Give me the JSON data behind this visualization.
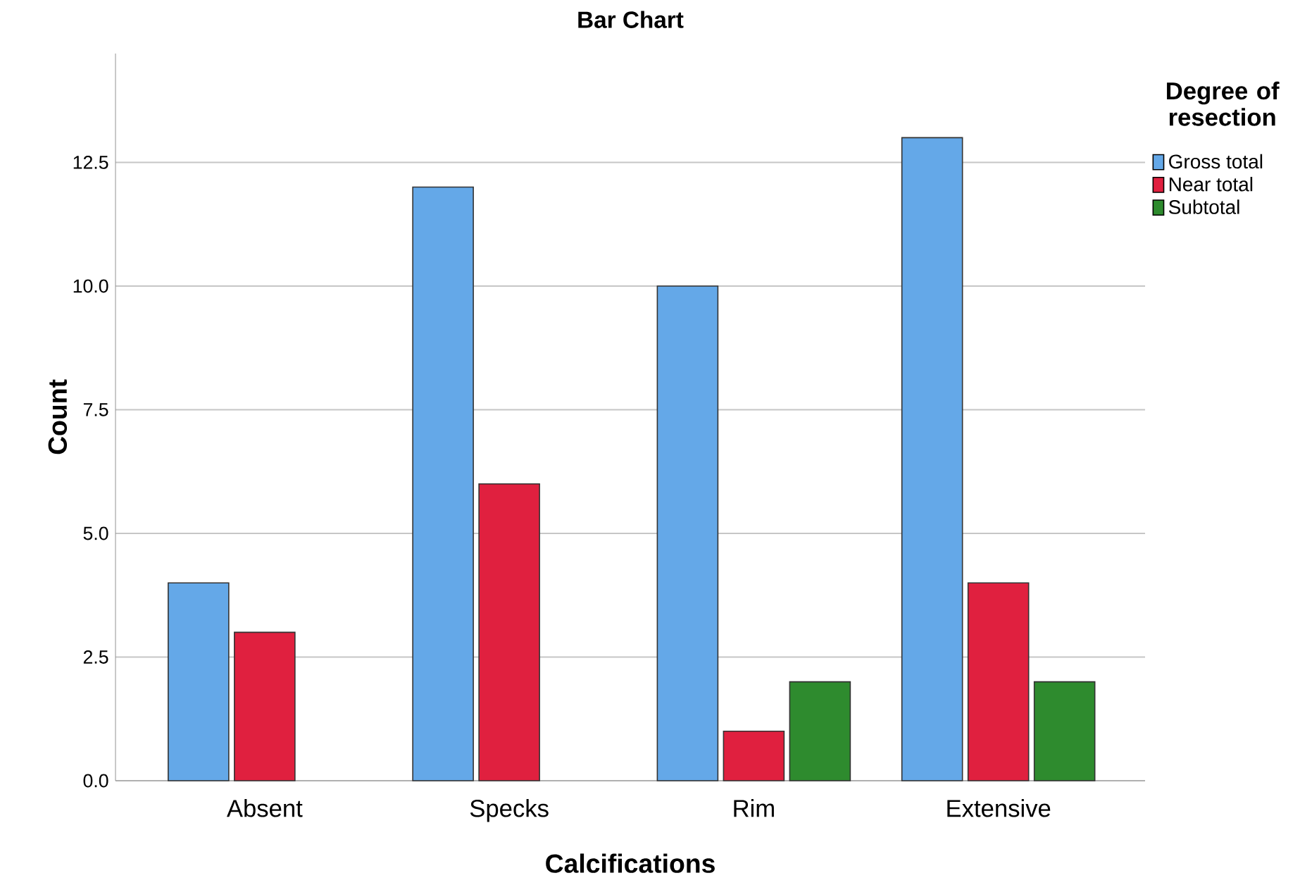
{
  "chart_data": {
    "type": "bar",
    "title": "Bar Chart",
    "xlabel": "Calcifications",
    "ylabel": "Count",
    "legend_title": "Degree of resection",
    "categories": [
      "Absent",
      "Specks",
      "Rim",
      "Extensive"
    ],
    "series": [
      {
        "name": "Gross total",
        "color": "#64a8e8",
        "values": [
          4,
          12,
          10,
          13
        ]
      },
      {
        "name": "Near total",
        "color": "#e0203f",
        "values": [
          3,
          6,
          1,
          4
        ]
      },
      {
        "name": "Subtotal",
        "color": "#2e8b2e",
        "values": [
          null,
          null,
          2,
          2
        ]
      }
    ],
    "ylim": [
      0,
      14.7
    ],
    "yticks": [
      {
        "value": 0,
        "label": "0.0"
      },
      {
        "value": 2.5,
        "label": "2.5"
      },
      {
        "value": 5,
        "label": "5.0"
      },
      {
        "value": 7.5,
        "label": "7.5"
      },
      {
        "value": 10,
        "label": "10.0"
      },
      {
        "value": 12.5,
        "label": "12.5"
      }
    ],
    "grid": "y",
    "legend": "top right"
  }
}
